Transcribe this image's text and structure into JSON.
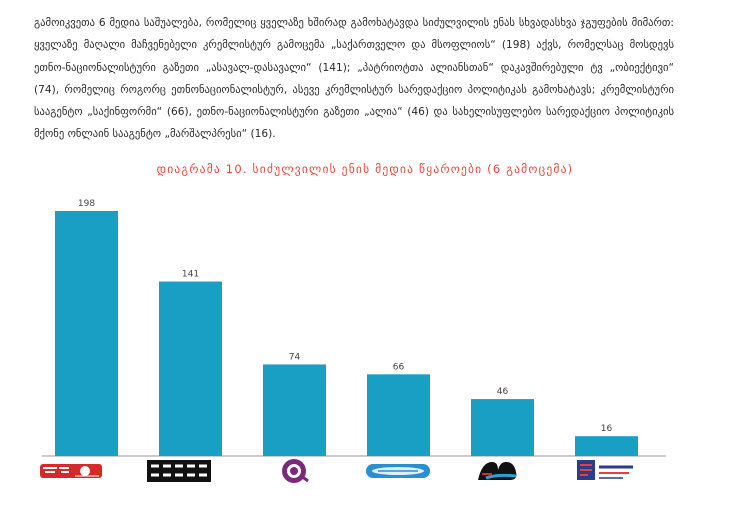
{
  "text": {
    "intro": "გამოიკვეთა 6 მედია საშუალება, რომელიც ყველაზე ხშირად გამოხატავდა სიძულვილის ენას სხვადასხვა ჯგუფების მიმართ: ყველაზე მაღალი მაჩვენებელი კრემლისტურ გამოცემა „საქართველო და მსოფლიოს“ (198) აქვს, რომელსაც მოსდევს ეთნო-ნაციონალისტური გაზეთი „ასავალ-დასავალი“ (141); „პატრიოტთა ალიანსთან“ დაკავშირებული ტვ „ობიექტივი“ (74), რომელიც როგორც ეთნონაციონალისტურ, ასევე კრემლისტურ სარედაქციო პოლიტიკას გამოხატავს; კრემლისტური სააგენტო „საქინფორმი“ (66), ეთნო-ნაციონალისტური გაზეთი „ალია“ (46) და სახელისუფლებო სარედაქციო პოლიტიკის მქონე ონლაინ სააგენტო „მარშალპრესი“ (16)."
  },
  "chart_data": {
    "type": "bar",
    "title": "დიაგრამა 10. სიძულვილის ენის მედია წყაროები (6 გამოცემა)",
    "values": [
      198,
      141,
      74,
      66,
      46,
      16
    ],
    "ylim": [
      0,
      198
    ],
    "bar_color": "#1a9fc4",
    "logos": [
      {
        "icon": "sakartvelo-da-msoplio-logo",
        "text": "საქართველო და მსოფლიო"
      },
      {
        "icon": "asaval-dasavali-logo",
        "text": "ასავალ დასავალი"
      },
      {
        "icon": "obieqtivi-logo",
        "text": ""
      },
      {
        "icon": "sakinformi-logo",
        "text": "საქინფორმი"
      },
      {
        "icon": "alia-logo",
        "text": "ალია"
      },
      {
        "icon": "marshalpress-logo",
        "text": "მარშალპრესი"
      }
    ]
  }
}
